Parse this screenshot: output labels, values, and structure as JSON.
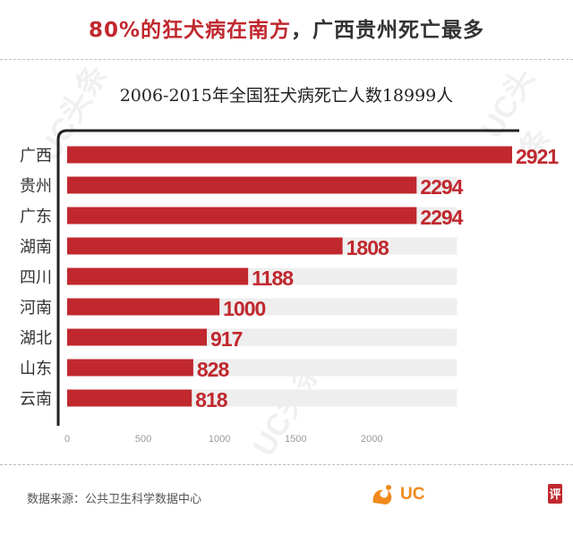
{
  "headline": {
    "red_part": "80%的狂犬病在南方",
    "dark_part": "，广西贵州死亡最多"
  },
  "colors": {
    "bar": "#c0282e",
    "track": "#eeeeee",
    "value_label": "#c0282e",
    "axis_tick": "#999999",
    "category": "#333333"
  },
  "chart_data": {
    "type": "bar",
    "orientation": "horizontal",
    "title": "2006-2015年全国狂犬病死亡人数18999人",
    "categories": [
      "广西",
      "贵州",
      "广东",
      "湖南",
      "四川",
      "河南",
      "湖北",
      "山东",
      "云南"
    ],
    "values": [
      2921,
      2294,
      2294,
      1808,
      1188,
      1000,
      917,
      828,
      818
    ],
    "value_labels": [
      "2921",
      "2294",
      "2294",
      "1808",
      "1188",
      "1000",
      "917",
      "828",
      "818"
    ],
    "xlim": [
      0,
      2921
    ],
    "track_max": 2500,
    "x_ticks": [
      0,
      500,
      1000,
      1500,
      2000
    ],
    "x_tick_labels": [
      "0",
      "500",
      "1000",
      "1500",
      "2000"
    ],
    "xlabel": "",
    "ylabel": ""
  },
  "footer": {
    "source": "数据来源：公共卫生科学数据中心",
    "logo_text": "UC",
    "corner_mark": "评"
  },
  "watermark_text": "UC头条"
}
